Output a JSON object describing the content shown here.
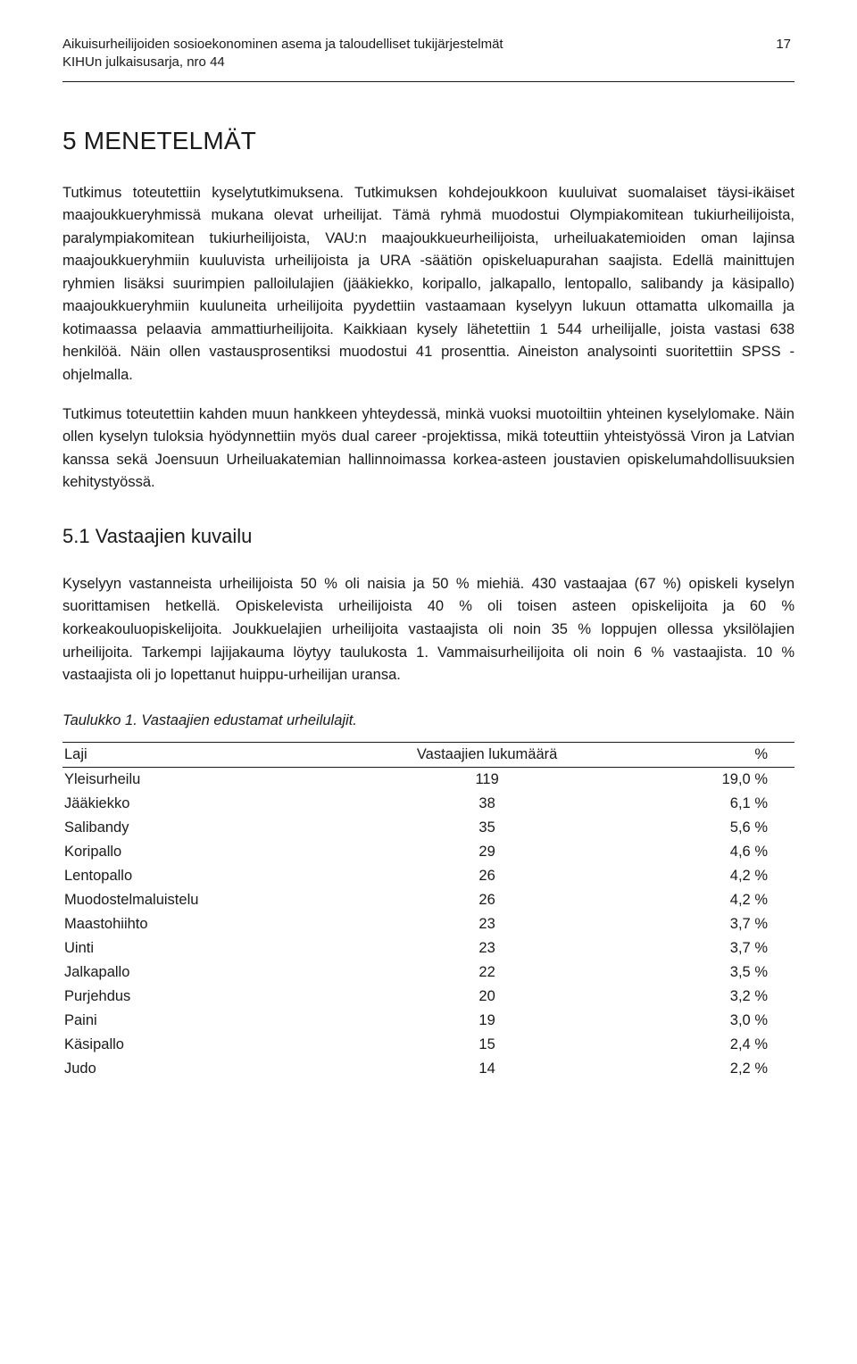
{
  "header": {
    "title_line1": "Aikuisurheilijoiden sosioekonominen asema ja taloudelliset tukijärjestelmät",
    "title_line2": "KIHUn julkaisusarja, nro 44",
    "page_number": "17"
  },
  "section": {
    "heading": "5 MENETELMÄT",
    "para1": "Tutkimus toteutettiin kyselytutkimuksena. Tutkimuksen kohdejoukkoon kuuluivat suomalaiset täysi-ikäiset maajoukkueryhmissä mukana olevat urheilijat. Tämä ryhmä muodostui Olympiakomitean tukiurheilijoista, paralympiakomitean tukiurheilijoista, VAU:n maajoukkueurheilijoista, urheiluakatemioiden oman lajinsa maajoukkueryhmiin kuuluvista urheilijoista ja URA -säätiön opiskeluapurahan saajista. Edellä mainittujen ryhmien lisäksi suurimpien palloilulajien (jääkiekko, koripallo, jalkapallo, lentopallo, salibandy ja käsipallo) maajoukkueryhmiin kuuluneita urheilijoita pyydettiin vastaamaan kyselyyn lukuun ottamatta ulkomailla ja kotimaassa pelaavia ammattiurheilijoita. Kaikkiaan kysely lähetettiin 1 544 urheilijalle, joista vastasi 638 henkilöä. Näin ollen vastausprosentiksi muodostui 41 prosenttia. Aineiston analysointi suoritettiin SPSS -ohjelmalla.",
    "para2": "Tutkimus toteutettiin kahden muun hankkeen yhteydessä, minkä vuoksi muotoiltiin yhteinen kyselylomake. Näin ollen kyselyn tuloksia hyödynnettiin myös dual career -projektissa, mikä toteuttiin yhteistyössä Viron ja Latvian kanssa sekä Joensuun Urheiluakatemian hallinnoimassa korkea-asteen joustavien opiskelumahdollisuuksien kehitystyössä.",
    "subheading": "5.1 Vastaajien kuvailu",
    "para3": "Kyselyyn vastanneista urheilijoista 50 % oli naisia ja 50 % miehiä. 430 vastaajaa (67 %) opiskeli kyselyn suorittamisen hetkellä. Opiskelevista urheilijoista 40 % oli toisen asteen opiskelijoita ja 60 % korkeakouluopiskelijoita. Joukkuelajien urheilijoita vastaajista oli noin 35 % loppujen ollessa yksilölajien urheilijoita. Tarkempi lajijakauma löytyy taulukosta 1. Vammaisurheilijoita oli noin 6 % vastaajista. 10 % vastaajista oli jo lopettanut huippu-urheilijan uransa."
  },
  "table": {
    "caption": "Taulukko 1. Vastaajien edustamat urheilulajit.",
    "columns": [
      "Laji",
      "Vastaajien lukumäärä",
      "%"
    ],
    "rows": [
      [
        "Yleisurheilu",
        "119",
        "19,0 %"
      ],
      [
        "Jääkiekko",
        "38",
        "6,1 %"
      ],
      [
        "Salibandy",
        "35",
        "5,6 %"
      ],
      [
        "Koripallo",
        "29",
        "4,6 %"
      ],
      [
        "Lentopallo",
        "26",
        "4,2 %"
      ],
      [
        "Muodostelmaluistelu",
        "26",
        "4,2 %"
      ],
      [
        "Maastohiihto",
        "23",
        "3,7 %"
      ],
      [
        "Uinti",
        "23",
        "3,7 %"
      ],
      [
        "Jalkapallo",
        "22",
        "3,5 %"
      ],
      [
        "Purjehdus",
        "20",
        "3,2 %"
      ],
      [
        "Paini",
        "19",
        "3,0 %"
      ],
      [
        "Käsipallo",
        "15",
        "2,4 %"
      ],
      [
        "Judo",
        "14",
        "2,2 %"
      ]
    ]
  }
}
